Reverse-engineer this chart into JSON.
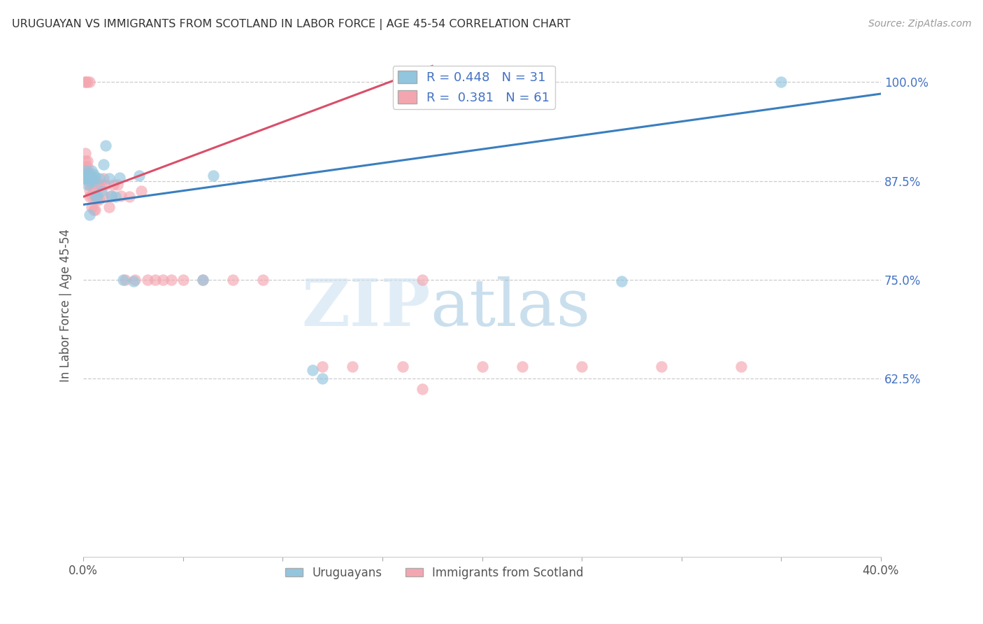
{
  "title": "URUGUAYAN VS IMMIGRANTS FROM SCOTLAND IN LABOR FORCE | AGE 45-54 CORRELATION CHART",
  "source": "Source: ZipAtlas.com",
  "ylabel": "In Labor Force | Age 45-54",
  "xlim": [
    0.0,
    0.4
  ],
  "ylim": [
    0.4,
    1.035
  ],
  "yticks": [
    0.625,
    0.75,
    0.875,
    1.0
  ],
  "ytick_labels": [
    "62.5%",
    "75.0%",
    "87.5%",
    "100.0%"
  ],
  "xticks": [
    0.0,
    0.05,
    0.1,
    0.15,
    0.2,
    0.25,
    0.3,
    0.35,
    0.4
  ],
  "xtick_labels": [
    "0.0%",
    "",
    "",
    "",
    "",
    "",
    "",
    "",
    "40.0%"
  ],
  "blue_color": "#92c5de",
  "pink_color": "#f4a6b0",
  "blue_line_color": "#3a7ebf",
  "pink_line_color": "#d94f6a",
  "legend_blue_R": "0.448",
  "legend_blue_N": "31",
  "legend_pink_R": "0.381",
  "legend_pink_N": "61",
  "blue_scatter_x": [
    0.001,
    0.001,
    0.001,
    0.002,
    0.002,
    0.003,
    0.003,
    0.004,
    0.004,
    0.005,
    0.005,
    0.006,
    0.006,
    0.007,
    0.008,
    0.009,
    0.01,
    0.011,
    0.013,
    0.014,
    0.016,
    0.018,
    0.02,
    0.025,
    0.028,
    0.06,
    0.065,
    0.115,
    0.12,
    0.27,
    0.35
  ],
  "blue_scatter_y": [
    0.878,
    0.883,
    0.888,
    0.87,
    0.882,
    0.875,
    0.832,
    0.88,
    0.888,
    0.875,
    0.883,
    0.88,
    0.856,
    0.856,
    0.878,
    0.862,
    0.896,
    0.92,
    0.878,
    0.856,
    0.855,
    0.879,
    0.75,
    0.748,
    0.882,
    0.75,
    0.882,
    0.636,
    0.625,
    0.748,
    1.0
  ],
  "pink_scatter_x": [
    0.001,
    0.001,
    0.001,
    0.001,
    0.001,
    0.001,
    0.001,
    0.002,
    0.002,
    0.002,
    0.002,
    0.002,
    0.003,
    0.003,
    0.003,
    0.003,
    0.003,
    0.003,
    0.004,
    0.004,
    0.004,
    0.005,
    0.005,
    0.005,
    0.006,
    0.006,
    0.007,
    0.007,
    0.008,
    0.008,
    0.009,
    0.01,
    0.01,
    0.011,
    0.013,
    0.014,
    0.015,
    0.017,
    0.019,
    0.021,
    0.023,
    0.026,
    0.029,
    0.032,
    0.036,
    0.04,
    0.044,
    0.05,
    0.06,
    0.075,
    0.09,
    0.12,
    0.135,
    0.16,
    0.17,
    0.2,
    0.22,
    0.25,
    0.29,
    0.33,
    0.17
  ],
  "pink_scatter_y": [
    0.878,
    0.884,
    0.893,
    0.9,
    0.91,
    1.0,
    1.0,
    0.878,
    0.885,
    0.893,
    0.9,
    1.0,
    0.855,
    0.863,
    0.87,
    0.878,
    0.885,
    1.0,
    0.842,
    0.856,
    0.878,
    0.838,
    0.862,
    0.878,
    0.838,
    0.856,
    0.852,
    0.87,
    0.852,
    0.87,
    0.87,
    0.856,
    0.878,
    0.87,
    0.842,
    0.856,
    0.87,
    0.87,
    0.856,
    0.75,
    0.855,
    0.75,
    0.862,
    0.75,
    0.75,
    0.75,
    0.75,
    0.75,
    0.75,
    0.75,
    0.75,
    0.64,
    0.64,
    0.64,
    0.612,
    0.64,
    0.64,
    0.64,
    0.64,
    0.64,
    0.75
  ],
  "watermark_zip": "ZIP",
  "watermark_atlas": "atlas",
  "background_color": "#ffffff",
  "title_color": "#333333",
  "axis_label_color": "#555555",
  "right_tick_color": "#4472c4",
  "grid_color": "#cccccc",
  "blue_trend_x0": 0.0,
  "blue_trend_x1": 0.4,
  "blue_trend_y0": 0.845,
  "blue_trend_y1": 0.985,
  "pink_trend_x0": 0.0,
  "pink_trend_x1": 0.175,
  "pink_trend_y0": 0.855,
  "pink_trend_y1": 1.02
}
